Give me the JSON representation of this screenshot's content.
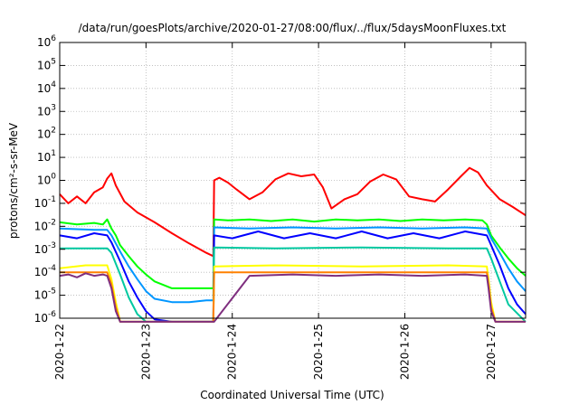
{
  "chart_data": {
    "type": "line",
    "title": "/data/run/goesPlots/archive/2020-01-27/08:00/flux/../flux/5daysMoonFluxes.txt",
    "xlabel": "Coordinated Universal Time (UTC)",
    "ylabel": "protons/cm²-s-sr-MeV",
    "yscale": "log",
    "ylim": [
      1e-06,
      1000000.0
    ],
    "xlim": [
      0,
      5.4
    ],
    "grid": true,
    "x_ticks": [
      {
        "x": 0,
        "label": "2020-1-22"
      },
      {
        "x": 1,
        "label": "2020-1-23"
      },
      {
        "x": 2,
        "label": "2020-1-24"
      },
      {
        "x": 3,
        "label": "2020-1-25"
      },
      {
        "x": 4,
        "label": "2020-1-26"
      },
      {
        "x": 5,
        "label": "2020-1-27"
      }
    ],
    "y_ticks": [
      {
        "exp": -6,
        "label": "10",
        "sup": "-6"
      },
      {
        "exp": -5,
        "label": "10",
        "sup": "-5"
      },
      {
        "exp": -4,
        "label": "10",
        "sup": "-4"
      },
      {
        "exp": -3,
        "label": "10",
        "sup": "-3"
      },
      {
        "exp": -2,
        "label": "10",
        "sup": "-2"
      },
      {
        "exp": -1,
        "label": "10",
        "sup": "-1"
      },
      {
        "exp": 0,
        "label": "10",
        "sup": "0"
      },
      {
        "exp": 1,
        "label": "10",
        "sup": "1"
      },
      {
        "exp": 2,
        "label": "10",
        "sup": "2"
      },
      {
        "exp": 3,
        "label": "10",
        "sup": "3"
      },
      {
        "exp": 4,
        "label": "10",
        "sup": "4"
      },
      {
        "exp": 5,
        "label": "10",
        "sup": "5"
      },
      {
        "exp": 6,
        "label": "10",
        "sup": "6"
      }
    ],
    "series": [
      {
        "color": "#ff0000",
        "x": [
          0.0,
          0.1,
          0.2,
          0.3,
          0.4,
          0.5,
          0.55,
          0.6,
          0.65,
          0.75,
          0.9,
          1.1,
          1.3,
          1.5,
          1.7,
          1.78,
          1.79,
          1.85,
          1.95,
          2.05,
          2.2,
          2.35,
          2.5,
          2.65,
          2.8,
          2.95,
          3.05,
          3.15,
          3.3,
          3.45,
          3.6,
          3.75,
          3.9,
          4.05,
          4.2,
          4.35,
          4.5,
          4.65,
          4.75,
          4.85,
          4.95,
          5.1,
          5.25,
          5.4
        ],
        "y": [
          0.25,
          0.1,
          0.2,
          0.1,
          0.3,
          0.5,
          1.2,
          2.0,
          0.6,
          0.12,
          0.04,
          0.015,
          0.005,
          0.0018,
          0.0007,
          0.0005,
          1.0,
          1.3,
          0.8,
          0.4,
          0.15,
          0.3,
          1.1,
          2.0,
          1.5,
          1.8,
          0.5,
          0.06,
          0.15,
          0.25,
          0.9,
          1.8,
          1.1,
          0.2,
          0.15,
          0.12,
          0.4,
          1.5,
          3.5,
          2.2,
          0.6,
          0.15,
          0.07,
          0.03
        ]
      },
      {
        "color": "#00ff00",
        "x": [
          0.0,
          0.2,
          0.4,
          0.5,
          0.55,
          0.6,
          0.65,
          0.7,
          0.8,
          0.9,
          1.0,
          1.1,
          1.3,
          1.5,
          1.7,
          1.78,
          1.79,
          1.95,
          2.2,
          2.45,
          2.7,
          2.95,
          3.2,
          3.45,
          3.7,
          3.95,
          4.2,
          4.45,
          4.7,
          4.9,
          4.95,
          5.0,
          5.1,
          5.2,
          5.3,
          5.4
        ],
        "y": [
          0.015,
          0.012,
          0.014,
          0.012,
          0.02,
          0.008,
          0.004,
          0.0015,
          0.0005,
          0.00018,
          8e-05,
          4e-05,
          2e-05,
          2e-05,
          2e-05,
          2e-05,
          0.02,
          0.018,
          0.02,
          0.017,
          0.02,
          0.016,
          0.02,
          0.018,
          0.02,
          0.017,
          0.02,
          0.018,
          0.02,
          0.018,
          0.012,
          0.004,
          0.0012,
          0.0004,
          0.00015,
          7e-05
        ]
      },
      {
        "color": "#0096ff",
        "x": [
          0.0,
          0.4,
          0.55,
          0.6,
          0.7,
          0.8,
          0.9,
          1.0,
          1.1,
          1.3,
          1.5,
          1.7,
          1.78,
          1.79,
          2.2,
          2.7,
          3.2,
          3.7,
          4.2,
          4.7,
          4.95,
          5.0,
          5.1,
          5.2,
          5.3,
          5.4
        ],
        "y": [
          0.008,
          0.007,
          0.007,
          0.004,
          0.0008,
          0.00018,
          5e-05,
          1.5e-05,
          7e-06,
          5e-06,
          5e-06,
          6e-06,
          6e-06,
          0.009,
          0.008,
          0.009,
          0.008,
          0.009,
          0.008,
          0.009,
          0.008,
          0.003,
          0.0007,
          0.00015,
          4e-05,
          1.5e-05
        ]
      },
      {
        "color": "#0000ff",
        "x": [
          0.0,
          0.2,
          0.4,
          0.55,
          0.6,
          0.7,
          0.8,
          0.9,
          1.0,
          1.1,
          1.3,
          1.5,
          1.7,
          1.78,
          1.79,
          2.0,
          2.3,
          2.6,
          2.9,
          3.2,
          3.5,
          3.8,
          4.1,
          4.4,
          4.7,
          4.95,
          5.0,
          5.1,
          5.2,
          5.3,
          5.4
        ],
        "y": [
          0.004,
          0.003,
          0.005,
          0.004,
          0.002,
          0.0003,
          4e-05,
          8e-06,
          2e-06,
          9e-07,
          5e-07,
          5e-07,
          5e-07,
          5e-07,
          0.004,
          0.003,
          0.006,
          0.003,
          0.005,
          0.003,
          0.006,
          0.003,
          0.005,
          0.003,
          0.006,
          0.004,
          0.0015,
          0.0002,
          2e-05,
          4e-06,
          1.5e-06
        ]
      },
      {
        "color": "#00c8a0",
        "x": [
          0.0,
          0.55,
          0.6,
          0.7,
          0.8,
          0.9,
          1.0,
          1.1,
          1.3,
          1.7,
          1.78,
          1.79,
          2.5,
          3.5,
          4.5,
          4.95,
          5.0,
          5.1,
          5.2,
          5.4
        ],
        "y": [
          0.0011,
          0.0011,
          0.0007,
          8e-05,
          8e-06,
          1.5e-06,
          5e-07,
          5e-07,
          5e-07,
          5e-07,
          5e-07,
          0.0012,
          0.0011,
          0.0012,
          0.0011,
          0.0011,
          0.0004,
          4e-05,
          4e-06,
          5e-07
        ]
      },
      {
        "color": "#ffff00",
        "x": [
          0.0,
          0.3,
          0.55,
          0.6,
          0.65,
          0.7,
          0.75,
          1.7,
          1.78,
          1.79,
          2.5,
          3.5,
          4.5,
          4.95,
          4.97,
          5.0,
          5.05,
          5.4
        ],
        "y": [
          0.00015,
          0.0002,
          0.0002,
          5e-05,
          5e-06,
          5e-07,
          5e-07,
          5e-07,
          5e-07,
          0.00018,
          0.0002,
          0.00018,
          0.0002,
          0.00018,
          5e-05,
          5e-06,
          5e-07,
          5e-07
        ]
      },
      {
        "color": "#ff8000",
        "x": [
          0.0,
          0.55,
          0.6,
          0.65,
          0.7,
          0.75,
          1.7,
          1.78,
          1.79,
          4.95,
          4.97,
          5.0,
          5.05,
          5.4
        ],
        "y": [
          0.0001,
          0.0001,
          3e-05,
          3e-06,
          5e-07,
          5e-07,
          5e-07,
          5e-07,
          0.0001,
          0.0001,
          3e-05,
          3e-06,
          5e-07,
          5e-07
        ]
      },
      {
        "color": "#7f2f7f",
        "x": [
          0.0,
          0.1,
          0.2,
          0.3,
          0.4,
          0.5,
          0.55,
          0.6,
          0.65,
          0.7,
          0.75,
          1.7,
          1.78,
          1.79,
          2.2,
          2.7,
          3.2,
          3.7,
          4.2,
          4.7,
          4.95,
          4.97,
          5.0,
          5.05,
          5.4
        ],
        "y": [
          7e-05,
          8e-05,
          6e-05,
          9e-05,
          7e-05,
          8e-05,
          7e-05,
          2e-05,
          2e-06,
          5e-07,
          5e-07,
          5e-07,
          5e-07,
          5e-07,
          7e-05,
          8e-05,
          7e-05,
          8e-05,
          7e-05,
          8e-05,
          7e-05,
          2e-05,
          2e-06,
          5e-07,
          5e-07
        ]
      }
    ]
  }
}
